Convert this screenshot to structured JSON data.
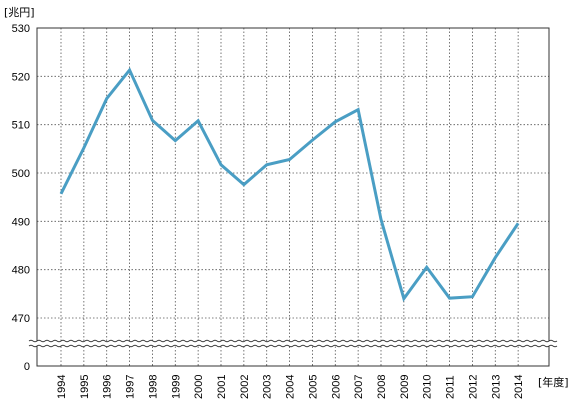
{
  "chart_data": {
    "type": "line",
    "y_unit": "[兆円]",
    "x_unit": "[年度]",
    "categories": [
      "1994",
      "1995",
      "1996",
      "1997",
      "1998",
      "1999",
      "2000",
      "2001",
      "2002",
      "2003",
      "2004",
      "2005",
      "2006",
      "2007",
      "2008",
      "2009",
      "2010",
      "2011",
      "2012",
      "2013",
      "2014"
    ],
    "series": [
      {
        "values": [
          495.7,
          505.2,
          515.4,
          521.3,
          510.9,
          506.7,
          510.8,
          501.7,
          497.6,
          501.7,
          502.8,
          506.8,
          510.6,
          513.1,
          490.4,
          474.0,
          480.5,
          474.1,
          474.4,
          482.5,
          489.6
        ]
      }
    ],
    "y_ticks": [
      0,
      470,
      480,
      490,
      500,
      510,
      520,
      530
    ],
    "ylim": [
      465,
      530
    ],
    "axis_break": true,
    "grid": "dotted",
    "line_color": "#4a9ec4"
  }
}
